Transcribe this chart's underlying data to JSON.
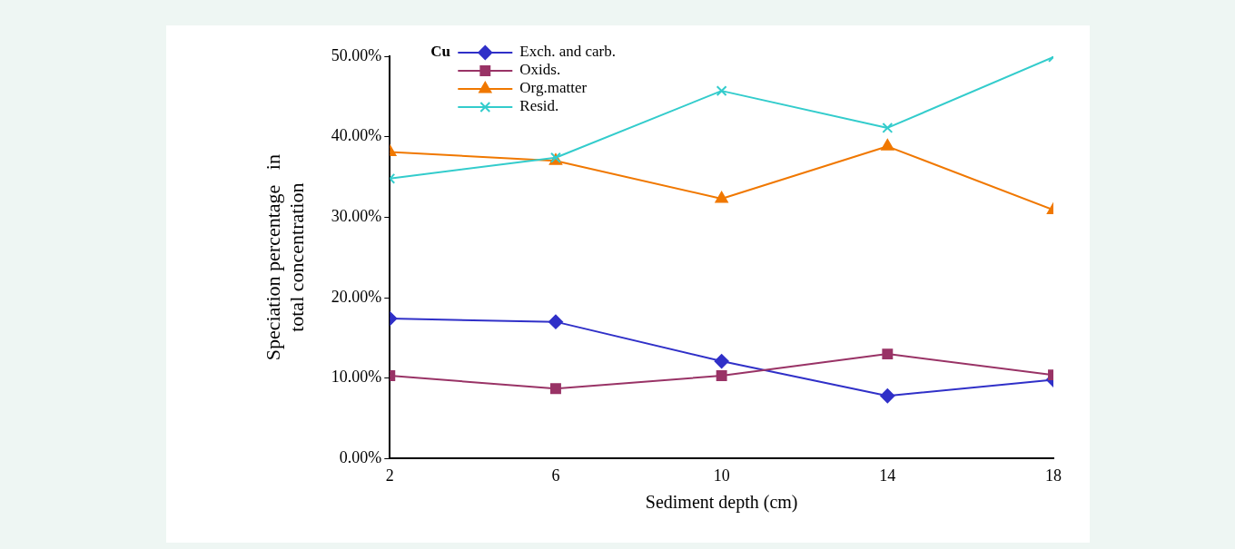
{
  "chart_data": {
    "type": "line",
    "xlabel": "Sediment depth (cm)",
    "ylabel": "Speciation percentage   in\ntotal concentration",
    "annotations": [
      "Cu"
    ],
    "x": [
      2,
      6,
      10,
      14,
      18
    ],
    "xlim": [
      2,
      18
    ],
    "xticks": [
      2,
      6,
      10,
      14,
      18
    ],
    "ylim": [
      0,
      50
    ],
    "yticks": [
      {
        "value": 0,
        "label": "0.00%"
      },
      {
        "value": 10,
        "label": "10.00%"
      },
      {
        "value": 20,
        "label": "20.00%"
      },
      {
        "value": 30,
        "label": "30.00%"
      },
      {
        "value": 40,
        "label": "40.00%"
      },
      {
        "value": 50,
        "label": "50.00%"
      }
    ],
    "grid": false,
    "legend": "top left",
    "line_style": "solid",
    "series": [
      {
        "name": "Exch. and carb.",
        "color": "#3030c8",
        "marker": "diamond",
        "values": [
          17.4,
          17.0,
          12.1,
          7.8,
          9.8
        ]
      },
      {
        "name": "Oxids.",
        "color": "#993366",
        "marker": "square",
        "values": [
          10.3,
          8.7,
          10.3,
          13.0,
          10.4
        ]
      },
      {
        "name": "Org.matter",
        "color": "#f07800",
        "marker": "triangle",
        "values": [
          38.1,
          37.0,
          32.3,
          38.8,
          30.9
        ]
      },
      {
        "name": "Resid.",
        "color": "#33cccc",
        "marker": "cross",
        "values": [
          34.8,
          37.4,
          45.7,
          41.1,
          49.9
        ]
      }
    ]
  }
}
